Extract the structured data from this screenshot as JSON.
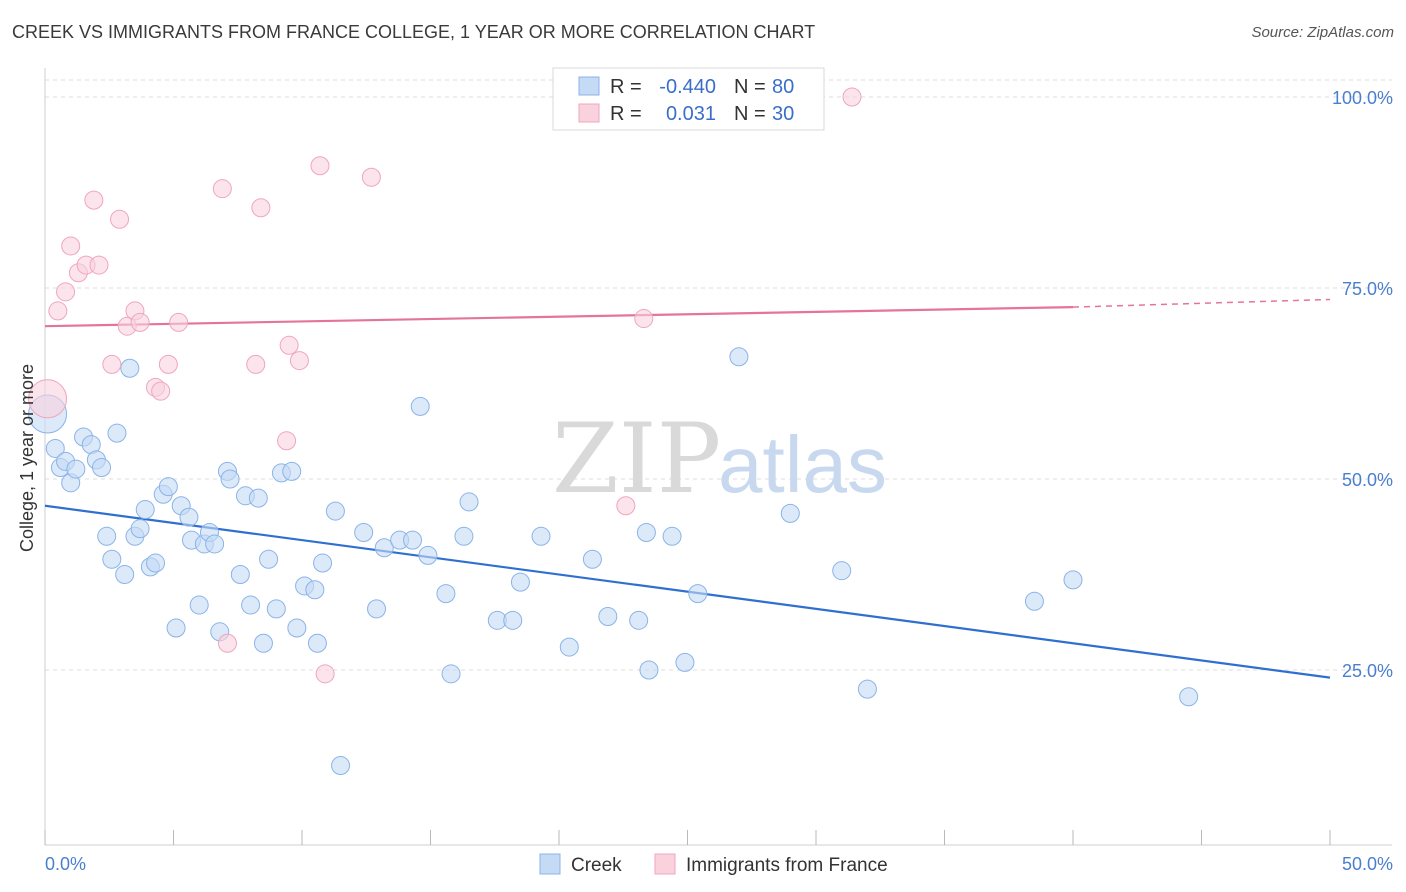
{
  "title": "CREEK VS IMMIGRANTS FROM FRANCE COLLEGE, 1 YEAR OR MORE CORRELATION CHART",
  "source": "Source: ZipAtlas.com",
  "watermark": {
    "zip": "ZIP",
    "atlas": "atlas"
  },
  "chart_data": {
    "type": "scatter",
    "title": "CREEK VS IMMIGRANTS FROM FRANCE COLLEGE, 1 YEAR OR MORE CORRELATION CHART",
    "xlabel": "",
    "ylabel": "College, 1 year or more",
    "xlim": [
      0,
      50
    ],
    "ylim": [
      0,
      105
    ],
    "y_ticks": [
      {
        "v": 100,
        "label": "100.0%"
      },
      {
        "v": 75,
        "label": "75.0%"
      },
      {
        "v": 50,
        "label": "50.0%"
      },
      {
        "v": 25,
        "label": "25.0%"
      }
    ],
    "x_tick_labels": {
      "left": "0.0%",
      "right": "50.0%"
    },
    "x_minor_ticks": [
      0,
      5,
      10,
      15,
      20,
      25,
      30,
      35,
      40,
      45,
      50
    ],
    "legend_stats": [
      {
        "r_label": "R =",
        "r": "-0.440",
        "n_label": "N =",
        "n": "80"
      },
      {
        "r_label": "R =",
        "r": "0.031",
        "n_label": "N =",
        "n": "30"
      }
    ],
    "series": [
      {
        "name": "Creek",
        "color": "#8ab4e8",
        "fill": "#c5daf5",
        "line_color": "#2f6fd0",
        "trend": {
          "x0": 0,
          "y0": 46.5,
          "x1": 50,
          "y1": 24.0
        },
        "points": [
          [
            0.1,
            58.5,
            "big"
          ],
          [
            0.4,
            54.0
          ],
          [
            0.6,
            51.5
          ],
          [
            0.8,
            52.3
          ],
          [
            1.0,
            49.5
          ],
          [
            1.2,
            51.3
          ],
          [
            1.5,
            55.5
          ],
          [
            1.8,
            54.5
          ],
          [
            2.0,
            52.5
          ],
          [
            2.2,
            51.5
          ],
          [
            2.4,
            42.5
          ],
          [
            2.6,
            39.5
          ],
          [
            2.8,
            56.0
          ],
          [
            3.1,
            37.5
          ],
          [
            3.3,
            64.5
          ],
          [
            3.5,
            42.5
          ],
          [
            3.7,
            43.5
          ],
          [
            3.9,
            46.0
          ],
          [
            4.1,
            38.5
          ],
          [
            4.3,
            39.0
          ],
          [
            4.6,
            48.0
          ],
          [
            4.8,
            49.0
          ],
          [
            5.1,
            30.5
          ],
          [
            5.3,
            46.5
          ],
          [
            5.6,
            45.0
          ],
          [
            5.7,
            42.0
          ],
          [
            6.0,
            33.5
          ],
          [
            6.2,
            41.5
          ],
          [
            6.4,
            43.0
          ],
          [
            6.6,
            41.5
          ],
          [
            6.8,
            30.0
          ],
          [
            7.1,
            51.0
          ],
          [
            7.2,
            50.0
          ],
          [
            7.6,
            37.5
          ],
          [
            7.8,
            47.8
          ],
          [
            8.0,
            33.5
          ],
          [
            8.3,
            47.5
          ],
          [
            8.5,
            28.5
          ],
          [
            8.7,
            39.5
          ],
          [
            9.0,
            33.0
          ],
          [
            9.2,
            50.8
          ],
          [
            9.6,
            51.0
          ],
          [
            9.8,
            30.5
          ],
          [
            10.1,
            36.0
          ],
          [
            10.5,
            35.5
          ],
          [
            10.6,
            28.5
          ],
          [
            10.8,
            39.0
          ],
          [
            11.3,
            45.8
          ],
          [
            11.5,
            12.5
          ],
          [
            12.4,
            43.0
          ],
          [
            12.9,
            33.0
          ],
          [
            13.2,
            41.0
          ],
          [
            13.8,
            42.0
          ],
          [
            14.3,
            42.0
          ],
          [
            14.6,
            59.5
          ],
          [
            14.9,
            40.0
          ],
          [
            15.6,
            35.0
          ],
          [
            15.8,
            24.5
          ],
          [
            16.3,
            42.5
          ],
          [
            16.5,
            47.0
          ],
          [
            17.6,
            31.5
          ],
          [
            18.2,
            31.5
          ],
          [
            18.5,
            36.5
          ],
          [
            19.3,
            42.5
          ],
          [
            20.4,
            28.0
          ],
          [
            21.3,
            39.5
          ],
          [
            21.9,
            32.0
          ],
          [
            23.1,
            31.5
          ],
          [
            23.4,
            43.0
          ],
          [
            23.5,
            25.0
          ],
          [
            24.4,
            42.5
          ],
          [
            24.9,
            26.0
          ],
          [
            25.4,
            35.0
          ],
          [
            27.0,
            66.0
          ],
          [
            29.0,
            45.5
          ],
          [
            31.0,
            38.0
          ],
          [
            32.0,
            22.5
          ],
          [
            38.5,
            34.0
          ],
          [
            40.0,
            36.8
          ],
          [
            44.5,
            21.5
          ]
        ]
      },
      {
        "name": "Immigrants from France",
        "color": "#f0a6bd",
        "fill": "#f9d2de",
        "line_color": "#e4749a",
        "trend": {
          "x0": 0,
          "y0": 70.0,
          "x1": 40,
          "y1": 72.5,
          "dash_x1": 50,
          "dash_y1": 73.5
        },
        "points": [
          [
            0.1,
            60.5,
            "big"
          ],
          [
            0.5,
            72.0
          ],
          [
            0.8,
            74.5
          ],
          [
            1.0,
            80.5
          ],
          [
            1.3,
            77.0
          ],
          [
            1.6,
            78.0
          ],
          [
            1.9,
            86.5
          ],
          [
            2.1,
            78.0
          ],
          [
            2.6,
            65.0
          ],
          [
            2.9,
            84.0
          ],
          [
            3.2,
            70.0
          ],
          [
            3.5,
            72.0
          ],
          [
            3.7,
            70.5
          ],
          [
            4.3,
            62.0
          ],
          [
            4.5,
            61.5
          ],
          [
            4.8,
            65.0
          ],
          [
            5.2,
            70.5
          ],
          [
            6.9,
            88.0
          ],
          [
            7.1,
            28.5
          ],
          [
            8.2,
            65.0
          ],
          [
            8.4,
            85.5
          ],
          [
            9.4,
            55.0
          ],
          [
            9.5,
            67.5
          ],
          [
            9.9,
            65.5
          ],
          [
            10.7,
            91.0
          ],
          [
            10.9,
            24.5
          ],
          [
            12.7,
            89.5
          ],
          [
            22.6,
            46.5
          ],
          [
            23.3,
            71.0
          ],
          [
            31.4,
            100.0
          ]
        ]
      }
    ]
  },
  "bottom_legend": [
    {
      "label": "Creek"
    },
    {
      "label": "Immigrants from France"
    }
  ]
}
